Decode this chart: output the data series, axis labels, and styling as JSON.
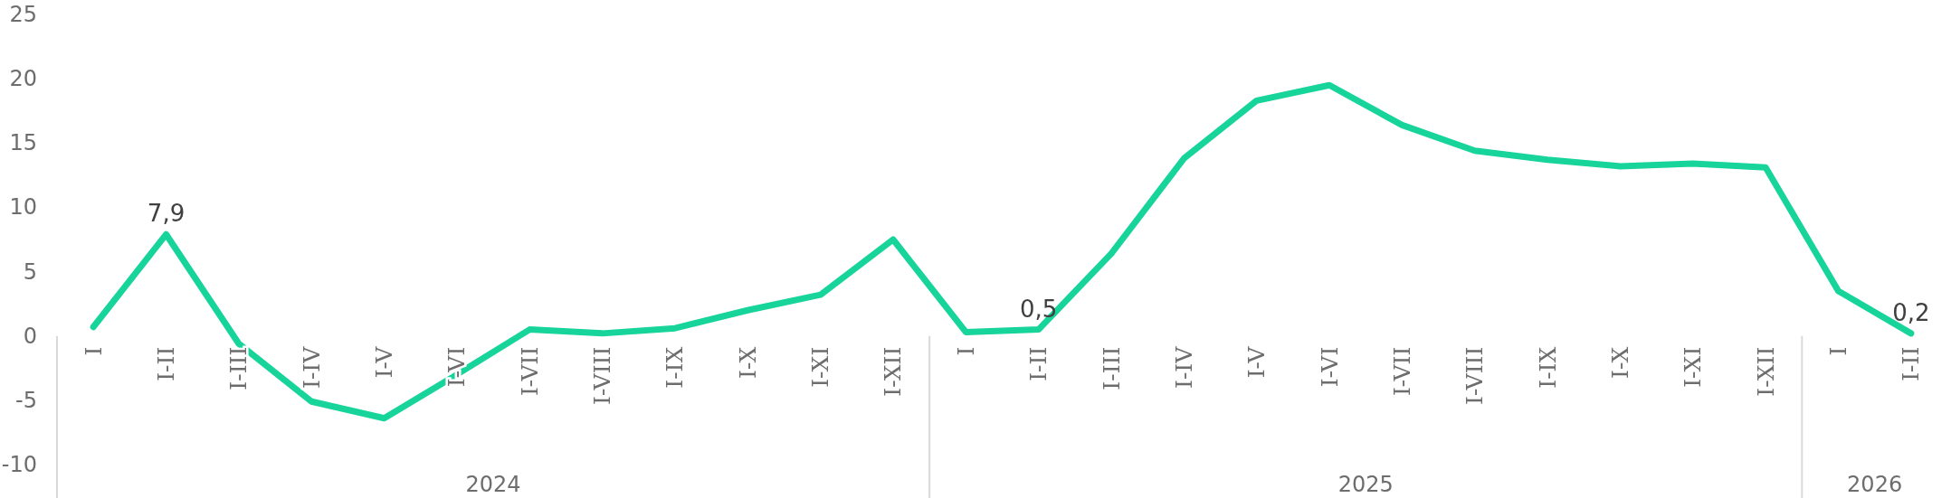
{
  "chart_data": {
    "type": "line",
    "categories": [
      "I",
      "I-II",
      "I-III",
      "I-IV",
      "I-V",
      "I-VI",
      "I-VII",
      "I-VIII",
      "I-IX",
      "I-X",
      "I-XI",
      "I-XII",
      "I",
      "I-II",
      "I-III",
      "I-IV",
      "I-V",
      "I-VI",
      "I-VII",
      "I-VIII",
      "I-IX",
      "I-X",
      "I-XI",
      "I-XII",
      "I",
      "I-II"
    ],
    "series": [
      {
        "color": "#17d49b",
        "values": [
          0.7,
          7.9,
          -0.6,
          -5.1,
          -6.4,
          -3.0,
          0.5,
          0.2,
          0.6,
          2.0,
          3.2,
          7.5,
          0.3,
          0.5,
          6.4,
          13.8,
          18.3,
          19.5,
          16.4,
          14.4,
          13.7,
          13.2,
          13.4,
          13.1,
          3.5,
          0.2
        ],
        "value_labels": [
          null,
          "7,9",
          null,
          null,
          null,
          null,
          null,
          null,
          null,
          null,
          null,
          null,
          null,
          "0,5",
          null,
          null,
          null,
          null,
          null,
          null,
          null,
          null,
          null,
          null,
          null,
          "0,2"
        ]
      }
    ],
    "ylim": [
      -10,
      25
    ],
    "yticks": [
      -10,
      -5,
      0,
      5,
      10,
      15,
      20,
      25
    ],
    "annotations": [
      "2024",
      "2025",
      "2026"
    ],
    "grid": false,
    "marker": "none",
    "line_style": "solid"
  }
}
